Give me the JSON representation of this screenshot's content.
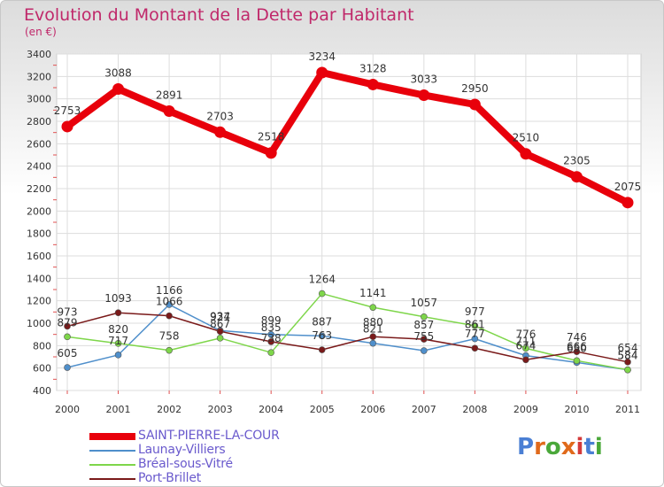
{
  "header": {
    "title": "Evolution du Montant de la Dette par Habitant",
    "subtitle": "(en €)"
  },
  "logo": {
    "text": "Proxiti",
    "letter_colors": [
      "#4a7fd4",
      "#e06a1b",
      "#4aa83a",
      "#e06a1b",
      "#d43a3a",
      "#4a7fd4",
      "#4aa83a"
    ]
  },
  "chart_data": {
    "type": "line",
    "x": [
      "2000",
      "2001",
      "2002",
      "2003",
      "2004",
      "2005",
      "2006",
      "2007",
      "2008",
      "2009",
      "2010",
      "2011"
    ],
    "ylim": [
      400,
      3400
    ],
    "yticks": [
      "400",
      "600",
      "800",
      "1000",
      "1200",
      "1400",
      "1600",
      "1800",
      "2000",
      "2200",
      "2400",
      "2600",
      "2800",
      "3000",
      "3200",
      "3400"
    ],
    "grid": true,
    "legend_position": "bottom-left",
    "series": [
      {
        "name": "SAINT-PIERRE-LA-COUR",
        "color": "#e8000b",
        "values": [
          2753,
          3088,
          2891,
          2703,
          2518,
          3234,
          3128,
          3033,
          2950,
          2510,
          2305,
          2075
        ]
      },
      {
        "name": "Launay-Villiers",
        "color": "#4f8fcb",
        "values": [
          605,
          717,
          1166,
          934,
          899,
          887,
          821,
          755,
          861,
          711,
          650,
          584
        ]
      },
      {
        "name": "Bréal-sous-Vitré",
        "color": "#7ed64a",
        "values": [
          879,
          820,
          758,
          867,
          738,
          1264,
          1141,
          1057,
          977,
          776,
          666,
          584
        ]
      },
      {
        "name": "Port-Brillet",
        "color": "#7a1a1a",
        "values": [
          973,
          1093,
          1066,
          927,
          835,
          763,
          880,
          857,
          777,
          674,
          746,
          654
        ]
      }
    ],
    "label_values": [
      [
        "2753",
        "3088",
        "2891",
        "2703",
        "2518",
        "3234",
        "3128",
        "3033",
        "2950",
        "2510",
        "2305",
        "2075"
      ],
      [
        "605",
        "717",
        "1166",
        "934",
        "899",
        "887",
        "821",
        "755",
        "861",
        "711",
        "650",
        "584"
      ],
      [
        "879",
        "820",
        "758",
        "867",
        "738",
        "1264",
        "1141",
        "1057",
        "977",
        "776",
        "666",
        "584"
      ],
      [
        "973",
        "1093",
        "1066",
        "927",
        "835",
        "763",
        "880",
        "857",
        "777",
        "674",
        "746",
        "654"
      ]
    ]
  }
}
